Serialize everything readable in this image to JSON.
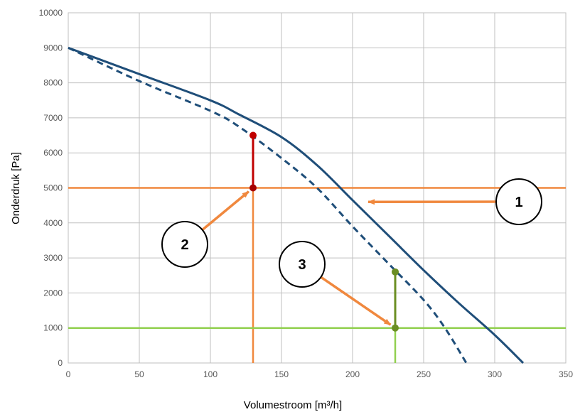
{
  "chart_data": {
    "type": "line",
    "xlabel": "Volumestroom [m³/h]",
    "ylabel": "Onderdruk [Pa]",
    "xlim": [
      0,
      350
    ],
    "ylim": [
      0,
      10000
    ],
    "x_ticks": [
      0,
      50,
      100,
      150,
      200,
      250,
      300,
      350
    ],
    "y_ticks": [
      0,
      1000,
      2000,
      3000,
      4000,
      5000,
      6000,
      7000,
      8000,
      9000,
      10000
    ],
    "grid": true,
    "series": [
      {
        "style": "solid",
        "color": "#1f4e79",
        "points": [
          [
            0,
            9000
          ],
          [
            50,
            8250
          ],
          [
            100,
            7500
          ],
          [
            120,
            7100
          ],
          [
            150,
            6450
          ],
          [
            175,
            5650
          ],
          [
            200,
            4650
          ],
          [
            225,
            3650
          ],
          [
            250,
            2650
          ],
          [
            275,
            1700
          ],
          [
            300,
            800
          ],
          [
            320,
            0
          ]
        ]
      },
      {
        "style": "dashed",
        "color": "#1f4e79",
        "points": [
          [
            0,
            9000
          ],
          [
            50,
            8050
          ],
          [
            100,
            7200
          ],
          [
            120,
            6750
          ],
          [
            150,
            5850
          ],
          [
            175,
            5000
          ],
          [
            200,
            3900
          ],
          [
            225,
            2850
          ],
          [
            250,
            1800
          ],
          [
            265,
            1000
          ],
          [
            280,
            0
          ]
        ]
      }
    ],
    "reference_lines": [
      {
        "color": "#f0883e",
        "horizontal_y": 5000,
        "vertical_x": 130
      },
      {
        "color": "#92d050",
        "horizontal_y": 1000,
        "vertical_x": 230
      }
    ],
    "markers": [
      {
        "x": 130,
        "y": 6500,
        "color": "#c00000"
      },
      {
        "x": 130,
        "y": 5000,
        "color": "#a50000"
      },
      {
        "x": 230,
        "y": 2600,
        "color": "#6b8e23"
      },
      {
        "x": 230,
        "y": 1000,
        "color": "#6b8e23"
      }
    ],
    "connectors": [
      {
        "x": 130,
        "y_from": 5000,
        "y_to": 6500,
        "color": "#c00000"
      },
      {
        "x": 230,
        "y_from": 1000,
        "y_to": 2600,
        "color": "#6b8e23"
      }
    ],
    "annotations": [
      {
        "label": "1",
        "target": [
          207,
          4600
        ]
      },
      {
        "label": "2",
        "target": [
          130,
          5000
        ]
      },
      {
        "label": "3",
        "target": [
          230,
          1000
        ]
      }
    ],
    "annotation_arrow_color": "#f0883e"
  }
}
